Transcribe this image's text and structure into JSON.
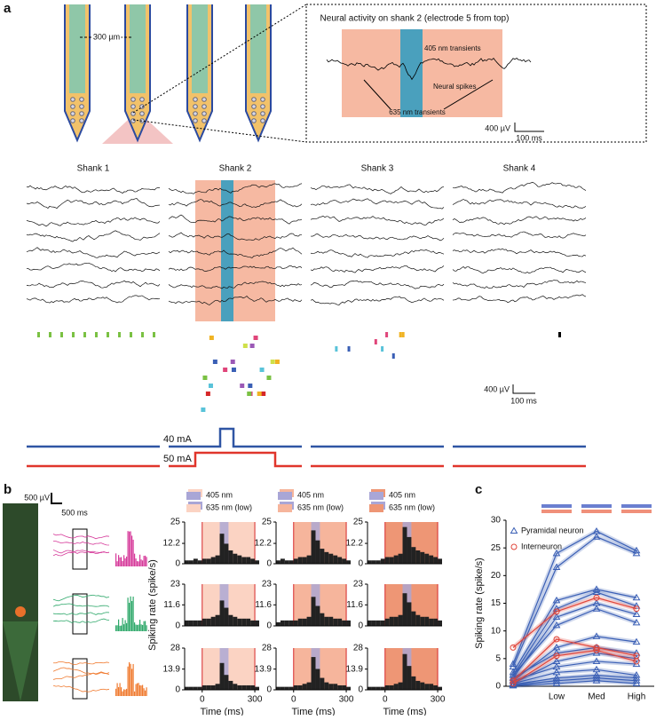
{
  "panel_a": {
    "label": "a",
    "probe_spacing": "300 µm",
    "inset": {
      "title": "Neural activity on shank 2 (electrode 5 from top)",
      "annotations": [
        "405 nm transients",
        "Neural spikes",
        "635 nm transients"
      ],
      "scale_v": "400 µV",
      "scale_t": "100 ms"
    },
    "shanks": [
      "Shank 1",
      "Shank 2",
      "Shank 3",
      "Shank 4"
    ],
    "scale_v": "400 µV",
    "scale_t": "100 ms",
    "currents": [
      "40 mA",
      "50 mA"
    ]
  },
  "panel_b": {
    "label": "b",
    "scale_v": "500 µV",
    "scale_t": "500 ms"
  },
  "panel_c": {
    "label": "c"
  },
  "chart_data": [
    {
      "type": "histogram",
      "bins": [
        -100,
        -75,
        -50,
        -25,
        0,
        25,
        50,
        75,
        100,
        125,
        150,
        175,
        200,
        225,
        250,
        275,
        300,
        325
      ],
      "counts": [
        2,
        2,
        3,
        2,
        3,
        3,
        4,
        5,
        18,
        12,
        8,
        6,
        5,
        4,
        4,
        3,
        2
      ],
      "color": "#222222",
      "xlim": [
        -100,
        325
      ],
      "ylim": [
        0,
        25
      ],
      "yticks": [
        0,
        12.2,
        25
      ],
      "shading": [
        {
          "name": "635 nm (low)",
          "color": "#fbd3c3",
          "range": [
            0,
            300
          ]
        },
        {
          "name": "405 nm",
          "color": "#a9a6d6",
          "range": [
            100,
            150
          ]
        }
      ]
    },
    {
      "type": "histogram",
      "bins": [
        -100,
        -75,
        -50,
        -25,
        0,
        25,
        50,
        75,
        100,
        125,
        150,
        175,
        200,
        225,
        250,
        275,
        300,
        325
      ],
      "counts": [
        2,
        3,
        2,
        2,
        3,
        4,
        4,
        5,
        20,
        14,
        9,
        7,
        6,
        5,
        4,
        3,
        2
      ],
      "color": "#222222",
      "xlim": [
        -100,
        325
      ],
      "ylim": [
        0,
        25
      ],
      "yticks": [
        0,
        12.2,
        25
      ],
      "shading": [
        {
          "name": "635 nm (low)",
          "color": "#f6b59c",
          "range": [
            0,
            300
          ]
        },
        {
          "name": "405 nm",
          "color": "#a9a6d6",
          "range": [
            100,
            150
          ]
        }
      ]
    },
    {
      "type": "histogram",
      "bins": [
        -100,
        -75,
        -50,
        -25,
        0,
        25,
        50,
        75,
        100,
        125,
        150,
        175,
        200,
        225,
        250,
        275,
        300,
        325
      ],
      "counts": [
        2,
        2,
        2,
        3,
        4,
        4,
        5,
        6,
        22,
        16,
        10,
        8,
        7,
        6,
        5,
        4,
        3
      ],
      "color": "#222222",
      "xlim": [
        -100,
        325
      ],
      "ylim": [
        0,
        25
      ],
      "yticks": [
        0,
        12.2,
        25
      ],
      "shading": [
        {
          "name": "635 nm (low)",
          "color": "#ee9675",
          "range": [
            0,
            300
          ]
        },
        {
          "name": "405 nm",
          "color": "#a9a6d6",
          "range": [
            100,
            150
          ]
        }
      ]
    },
    {
      "type": "histogram",
      "bins": [
        -100,
        -75,
        -50,
        -25,
        0,
        25,
        50,
        75,
        100,
        125,
        150,
        175,
        200,
        225,
        250,
        275,
        300,
        325
      ],
      "counts": [
        3,
        3,
        3,
        3,
        4,
        4,
        5,
        6,
        14,
        10,
        6,
        5,
        4,
        4,
        4,
        3,
        3
      ],
      "color": "#222222",
      "xlim": [
        -100,
        325
      ],
      "ylim": [
        0,
        23
      ],
      "yticks": [
        0,
        11.6,
        23
      ],
      "ylabel": "Spiking rate (spike/s)",
      "shading": [
        {
          "color": "#fbd3c3",
          "range": [
            0,
            300
          ]
        },
        {
          "color": "#a9a6d6",
          "range": [
            100,
            150
          ]
        }
      ]
    },
    {
      "type": "histogram",
      "bins": [
        -100,
        -75,
        -50,
        -25,
        0,
        25,
        50,
        75,
        100,
        125,
        150,
        175,
        200,
        225,
        250,
        275,
        300,
        325
      ],
      "counts": [
        2,
        3,
        3,
        3,
        3,
        4,
        4,
        5,
        16,
        11,
        7,
        5,
        5,
        4,
        4,
        3,
        3
      ],
      "color": "#222222",
      "xlim": [
        -100,
        325
      ],
      "ylim": [
        0,
        23
      ],
      "yticks": [
        0,
        11.6,
        23
      ],
      "shading": [
        {
          "color": "#f6b59c",
          "range": [
            0,
            300
          ]
        },
        {
          "color": "#a9a6d6",
          "range": [
            100,
            150
          ]
        }
      ]
    },
    {
      "type": "histogram",
      "bins": [
        -100,
        -75,
        -50,
        -25,
        0,
        25,
        50,
        75,
        100,
        125,
        150,
        175,
        200,
        225,
        250,
        275,
        300,
        325
      ],
      "counts": [
        3,
        3,
        3,
        3,
        4,
        5,
        5,
        6,
        18,
        13,
        8,
        6,
        5,
        5,
        4,
        4,
        3
      ],
      "color": "#222222",
      "xlim": [
        -100,
        325
      ],
      "ylim": [
        0,
        23
      ],
      "yticks": [
        0,
        11.6,
        23
      ],
      "shading": [
        {
          "color": "#ee9675",
          "range": [
            0,
            300
          ]
        },
        {
          "color": "#a9a6d6",
          "range": [
            100,
            150
          ]
        }
      ]
    },
    {
      "type": "histogram",
      "bins": [
        -100,
        -75,
        -50,
        -25,
        0,
        25,
        50,
        75,
        100,
        125,
        150,
        175,
        200,
        225,
        250,
        275,
        300,
        325
      ],
      "counts": [
        2,
        2,
        2,
        2,
        3,
        3,
        3,
        4,
        18,
        10,
        6,
        4,
        3,
        3,
        3,
        3,
        2
      ],
      "color": "#222222",
      "xlim": [
        -100,
        325
      ],
      "xticks": [
        0,
        300
      ],
      "xlabel": "Time (ms)",
      "ylim": [
        0,
        28
      ],
      "yticks": [
        0,
        13.9,
        28
      ],
      "shading": [
        {
          "color": "#fbd3c3",
          "range": [
            0,
            300
          ]
        },
        {
          "color": "#a9a6d6",
          "range": [
            100,
            150
          ]
        }
      ]
    },
    {
      "type": "histogram",
      "bins": [
        -100,
        -75,
        -50,
        -25,
        0,
        25,
        50,
        75,
        100,
        125,
        150,
        175,
        200,
        225,
        250,
        275,
        300,
        325
      ],
      "counts": [
        2,
        2,
        2,
        2,
        3,
        3,
        4,
        5,
        22,
        14,
        8,
        5,
        4,
        4,
        3,
        3,
        2
      ],
      "color": "#222222",
      "xlim": [
        -100,
        325
      ],
      "xticks": [
        0,
        300
      ],
      "xlabel": "Time (ms)",
      "ylim": [
        0,
        28
      ],
      "yticks": [
        0,
        13.9,
        28
      ],
      "shading": [
        {
          "color": "#f6b59c",
          "range": [
            0,
            300
          ]
        },
        {
          "color": "#a9a6d6",
          "range": [
            100,
            150
          ]
        }
      ]
    },
    {
      "type": "histogram",
      "bins": [
        -100,
        -75,
        -50,
        -25,
        0,
        25,
        50,
        75,
        100,
        125,
        150,
        175,
        200,
        225,
        250,
        275,
        300,
        325
      ],
      "counts": [
        2,
        2,
        2,
        2,
        3,
        3,
        4,
        5,
        24,
        16,
        9,
        6,
        5,
        4,
        4,
        3,
        2
      ],
      "color": "#222222",
      "xlim": [
        -100,
        325
      ],
      "xticks": [
        0,
        300
      ],
      "xlabel": "Time (ms)",
      "ylim": [
        0,
        28
      ],
      "yticks": [
        0,
        13.9,
        28
      ],
      "shading": [
        {
          "color": "#ee9675",
          "range": [
            0,
            300
          ]
        },
        {
          "color": "#a9a6d6",
          "range": [
            100,
            150
          ]
        }
      ]
    },
    {
      "type": "line",
      "categories": [
        null,
        "Low",
        "Med",
        "High"
      ],
      "ylim": [
        0,
        30
      ],
      "yticks": [
        0,
        5,
        10,
        15,
        20,
        25,
        30
      ],
      "ylabel": "Spiking rate (spike/s)",
      "series": [
        {
          "name": "Pyramidal neuron",
          "color": "#3a5fb5",
          "marker": "triangle",
          "lines": [
            [
              4,
              24,
              28,
              24.5
            ],
            [
              3.5,
              21.5,
              27,
              24
            ],
            [
              2.5,
              15.5,
              17.5,
              16
            ],
            [
              2,
              14,
              17,
              14.5
            ],
            [
              1.5,
              12.5,
              15,
              13
            ],
            [
              2,
              11,
              14,
              11.5
            ],
            [
              1,
              7,
              9,
              8
            ],
            [
              1.5,
              6,
              7,
              6
            ],
            [
              0.5,
              4.5,
              6,
              5
            ],
            [
              1,
              3.5,
              4.5,
              4
            ],
            [
              0.5,
              2.5,
              3,
              2
            ],
            [
              0.3,
              1.5,
              2,
              1.5
            ],
            [
              0.2,
              1,
              1.5,
              1
            ],
            [
              0.1,
              0.5,
              1,
              0.5
            ]
          ]
        },
        {
          "name": "Interneuron",
          "color": "#e0453a",
          "marker": "circle",
          "lines": [
            [
              7,
              13.5,
              16,
              14
            ],
            [
              1,
              8.5,
              7,
              5.5
            ],
            [
              0.5,
              5.5,
              6.5,
              4.5
            ]
          ]
        }
      ]
    }
  ]
}
